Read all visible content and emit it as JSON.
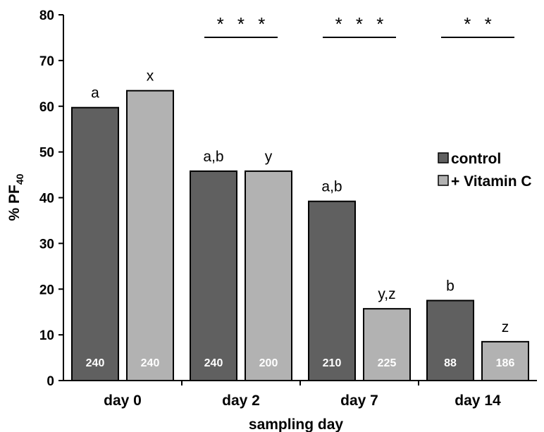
{
  "chart_data": {
    "type": "bar",
    "title": "",
    "xlabel": "sampling day",
    "ylabel_prefix": "% PF",
    "ylabel_subscript": "40",
    "ylim": [
      0,
      80
    ],
    "yticks": [
      0,
      10,
      20,
      30,
      40,
      50,
      60,
      70,
      80
    ],
    "grid": false,
    "legend_position": "right",
    "categories": [
      "day 0",
      "day 2",
      "day 7",
      "day 14"
    ],
    "series": [
      {
        "name": "control",
        "color": "#606060",
        "values": [
          59.7,
          45.8,
          39.2,
          17.5
        ],
        "labels": [
          "a",
          "a,b",
          "a,b",
          "b"
        ],
        "n": [
          "240",
          "240",
          "210",
          "88"
        ]
      },
      {
        "name": "+ Vitamin C",
        "color": "#b2b2b2",
        "values": [
          63.4,
          45.8,
          15.7,
          8.5
        ],
        "labels": [
          "x",
          "y",
          "y,z",
          "z"
        ],
        "n": [
          "240",
          "200",
          "225",
          "186"
        ]
      }
    ],
    "significance": [
      {
        "category": "day 0",
        "label": ""
      },
      {
        "category": "day 2",
        "label": "* * *"
      },
      {
        "category": "day 7",
        "label": "* * *"
      },
      {
        "category": "day 14",
        "label": "* *"
      }
    ]
  }
}
